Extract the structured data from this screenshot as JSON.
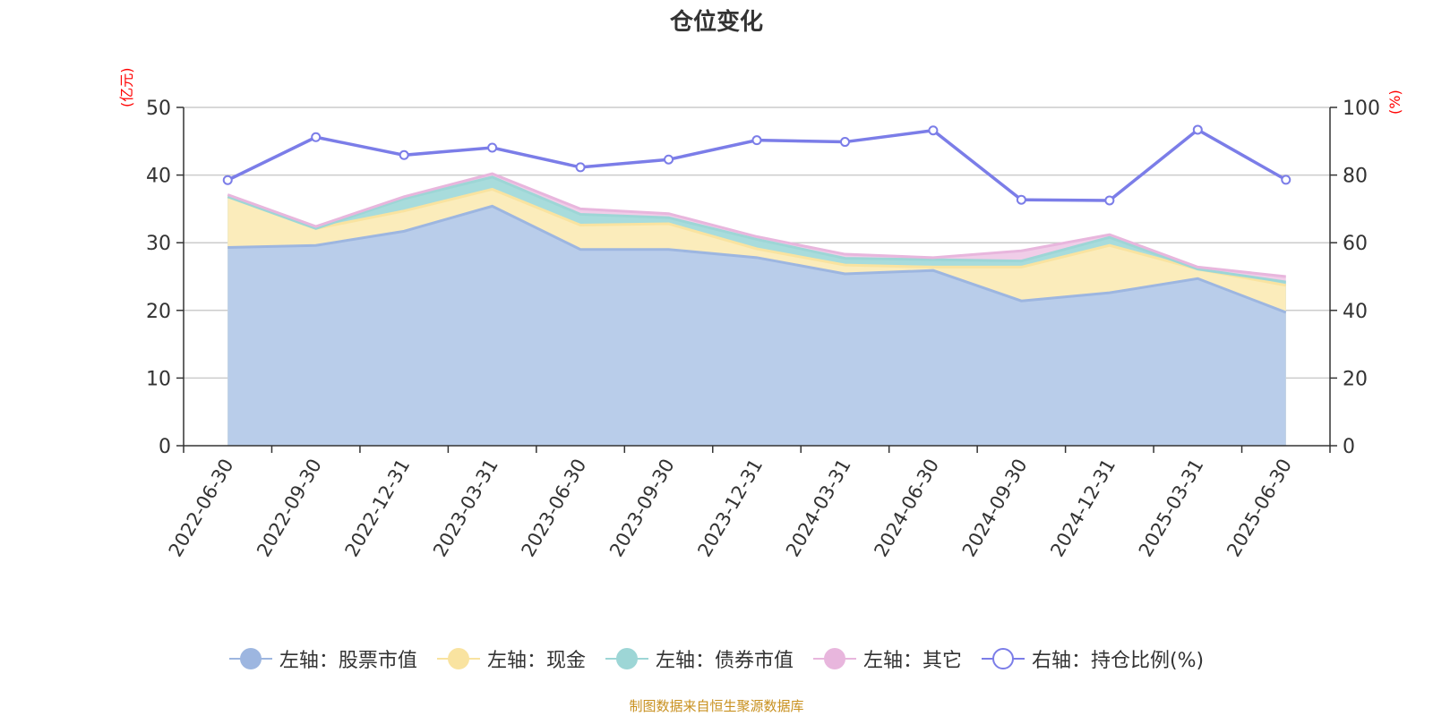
{
  "chart_data": {
    "type": "area",
    "title": "仓位变化",
    "categories": [
      "2022-06-30",
      "2022-09-30",
      "2022-12-31",
      "2023-03-31",
      "2023-06-30",
      "2023-09-30",
      "2023-12-31",
      "2024-03-31",
      "2024-06-30",
      "2024-09-30",
      "2024-12-31",
      "2025-03-31",
      "2025-06-30"
    ],
    "left_axis": {
      "unit": "(亿元)",
      "range": [
        0,
        50
      ],
      "ticks": [
        "0",
        "10",
        "20",
        "30",
        "40",
        "50"
      ]
    },
    "right_axis": {
      "unit": "(%)",
      "range": [
        0,
        100
      ],
      "ticks": [
        "0",
        "20",
        "40",
        "60",
        "80",
        "100"
      ]
    },
    "grid": true,
    "legend_position": "bottom",
    "series": [
      {
        "name": "左轴：股票市值",
        "axis": "left",
        "stacked": true,
        "color": "#9db6e0",
        "fill": "#b9cdea",
        "values": [
          29.3,
          29.6,
          31.7,
          35.4,
          29.0,
          29.0,
          27.8,
          25.4,
          25.9,
          21.4,
          22.6,
          24.7,
          19.7
        ]
      },
      {
        "name": "左轴：现金",
        "axis": "left",
        "stacked": true,
        "color": "#f9e3a0",
        "fill": "#fbecbb",
        "values": [
          7.5,
          2.5,
          3.0,
          2.5,
          3.6,
          3.8,
          1.3,
          1.3,
          0.5,
          5.0,
          7.0,
          1.4,
          4.0
        ]
      },
      {
        "name": "左轴：债券市值",
        "axis": "left",
        "stacked": true,
        "color": "#9dd6d6",
        "fill": "#a8dcdc",
        "values": [
          0,
          0,
          1.8,
          1.8,
          1.6,
          0.9,
          1.4,
          1.0,
          1.1,
          0.9,
          1.2,
          0,
          0.5
        ]
      },
      {
        "name": "左轴：其它",
        "axis": "left",
        "stacked": true,
        "color": "#e8b6dd",
        "fill": "#f0cde8",
        "values": [
          0.3,
          0.3,
          0.3,
          0.5,
          0.8,
          0.6,
          0.4,
          0.6,
          0.3,
          1.5,
          0.4,
          0.3,
          0.8
        ]
      },
      {
        "name": "右轴：持仓比例(%)",
        "axis": "right",
        "type": "line",
        "color": "#7b7de8",
        "values": [
          78.5,
          91.2,
          85.9,
          88.1,
          82.3,
          84.6,
          90.3,
          89.8,
          93.2,
          72.7,
          72.5,
          93.4,
          78.6
        ]
      }
    ],
    "source": "制图数据来自恒生聚源数据库"
  }
}
